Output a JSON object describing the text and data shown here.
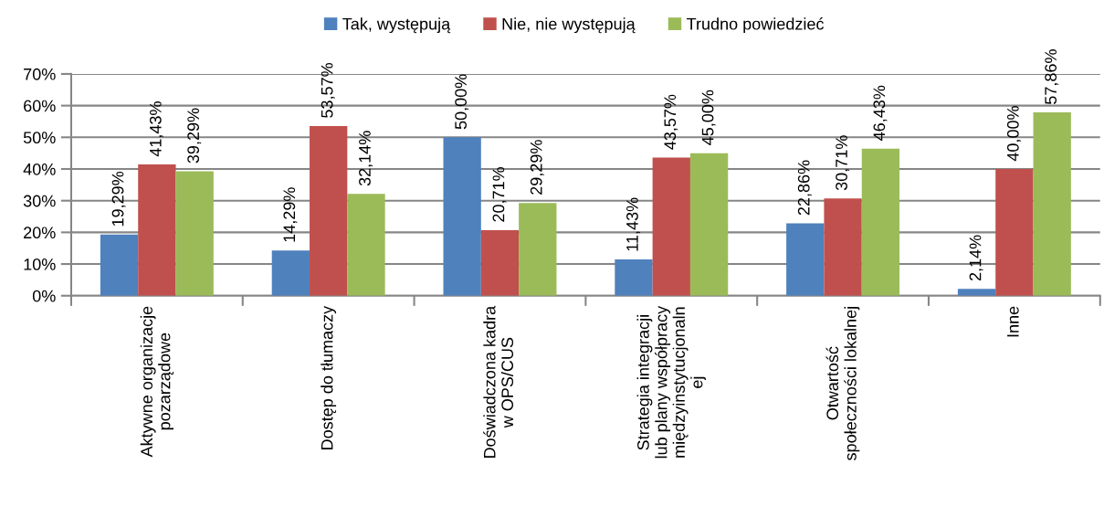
{
  "chart_data": {
    "type": "bar",
    "categories": [
      "Aktywne organizacje\npozarządowe",
      "Dostęp do tłumaczy",
      "Doświadczona kadra\nw OPS/CUS",
      "Strategia integracji\nlub plany współpracy\nmiędzyinstytucjonaln\nej",
      "Otwartość\nspołeczności lokalnej",
      "Inne"
    ],
    "series": [
      {
        "name": "Tak, występują",
        "color": "#4f81bd",
        "values": [
          19.29,
          14.29,
          50.0,
          11.43,
          22.86,
          2.14
        ],
        "value_labels": [
          "19,29%",
          "14,29%",
          "50,00%",
          "11,43%",
          "22,86%",
          "2,14%"
        ]
      },
      {
        "name": "Nie, nie występują",
        "color": "#c0504d",
        "values": [
          41.43,
          53.57,
          20.71,
          43.57,
          30.71,
          40.0
        ],
        "value_labels": [
          "41,43%",
          "53,57%",
          "20,71%",
          "43,57%",
          "30,71%",
          "40,00%"
        ]
      },
      {
        "name": "Trudno powiedzieć",
        "color": "#9bbb59",
        "values": [
          39.29,
          32.14,
          29.29,
          45.0,
          46.43,
          57.86
        ],
        "value_labels": [
          "39,29%",
          "32,14%",
          "29,29%",
          "45,00%",
          "46,43%",
          "57,86%"
        ]
      }
    ],
    "ylim": [
      0,
      70
    ],
    "yticks": [
      {
        "value": 0,
        "label": "0%"
      },
      {
        "value": 10,
        "label": "10%"
      },
      {
        "value": 20,
        "label": "20%"
      },
      {
        "value": 30,
        "label": "30%"
      },
      {
        "value": 40,
        "label": "40%"
      },
      {
        "value": 50,
        "label": "50%"
      },
      {
        "value": 60,
        "label": "60%"
      },
      {
        "value": 70,
        "label": "70%"
      }
    ],
    "grid": "y",
    "legend": "top"
  }
}
